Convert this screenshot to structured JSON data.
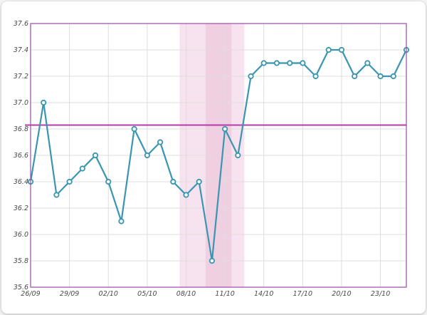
{
  "chart_data": {
    "type": "line",
    "title": "",
    "xlabel": "",
    "ylabel": "",
    "ylim": [
      35.6,
      37.6
    ],
    "y_ticks": [
      "37.6",
      "37.4",
      "37.2",
      "37.0",
      "36.8",
      "36.6",
      "36.4",
      "36.2",
      "36.0",
      "35.8",
      "35.6"
    ],
    "x_tick_labels": [
      "26/09",
      "29/09",
      "02/10",
      "05/10",
      "08/10",
      "11/10",
      "14/10",
      "17/10",
      "20/10",
      "23/10"
    ],
    "x_tick_every": 3,
    "series": [
      {
        "values": [
          36.4,
          37.0,
          36.3,
          36.4,
          36.5,
          36.6,
          36.4,
          36.1,
          36.8,
          36.6,
          36.7,
          36.4,
          36.3,
          36.4,
          35.8,
          36.8,
          36.6,
          37.2,
          37.3,
          37.3,
          37.3,
          37.3,
          37.2,
          37.4,
          37.4,
          37.2,
          37.3,
          37.2,
          37.2,
          37.4
        ]
      }
    ],
    "reference_line": {
      "value": 36.83
    },
    "shaded_ranges": [
      {
        "from_index": 12,
        "to_index": 17,
        "shade": "light"
      },
      {
        "from_index": 14,
        "to_index": 16,
        "shade": "medium"
      }
    ],
    "grid": true,
    "colors": {
      "line": "#3a95b0",
      "marker_fill": "#ffffff",
      "reference": "#b83aaa",
      "shade_light": "#f6e3ef",
      "shade_medium": "#f1cfe2",
      "frame": "#9c4aa8",
      "grid": "#dddddd"
    }
  }
}
